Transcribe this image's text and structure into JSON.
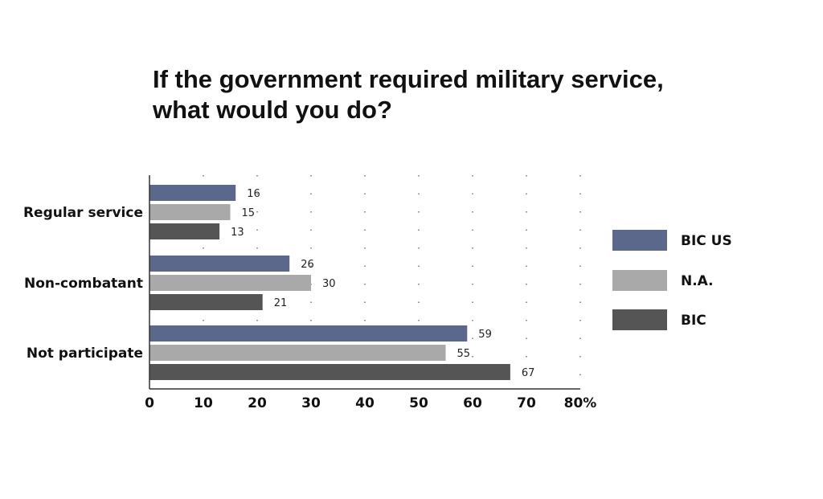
{
  "title_lines": [
    "If the government required military service,",
    "what would you do?"
  ],
  "chart_data": {
    "type": "bar",
    "orientation": "horizontal",
    "title": "If the government required military service, what would you do?",
    "categories": [
      "Regular service",
      "Non-combatant",
      "Not participate"
    ],
    "series": [
      {
        "name": "BIC US",
        "values": [
          16,
          26,
          59
        ],
        "color": "#5b678b"
      },
      {
        "name": "N.A.",
        "values": [
          15,
          30,
          55
        ],
        "color": "#a9a9a9"
      },
      {
        "name": "BIC",
        "values": [
          13,
          21,
          67
        ],
        "color": "#555555"
      }
    ],
    "x_ticks": [
      "0",
      "10",
      "20",
      "30",
      "40",
      "50",
      "60",
      "70",
      "80%"
    ],
    "xlim": [
      0,
      80
    ],
    "grid": "vertical dotted",
    "legend_position": "right"
  }
}
